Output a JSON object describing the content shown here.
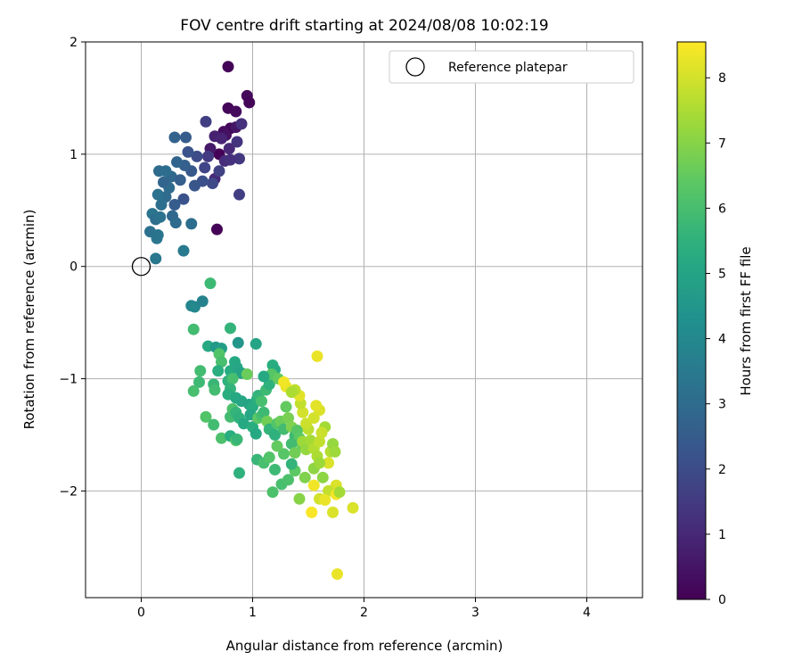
{
  "chart_data": {
    "type": "scatter",
    "title": "FOV centre drift starting at 2024/08/08 10:02:19",
    "xlabel": "Angular distance from reference (arcmin)",
    "ylabel": "Rotation from reference (arcmin)",
    "xlim": [
      -0.5,
      4.5
    ],
    "ylim": [
      -2.95,
      2.0
    ],
    "x_ticks": [
      0,
      1,
      2,
      3,
      4
    ],
    "y_ticks": [
      -2,
      -1,
      0,
      1,
      2
    ],
    "grid": true,
    "legend": {
      "placement": "top-right",
      "entries": [
        "Reference platepar"
      ]
    },
    "colorbar": {
      "label": "Hours from first FF file",
      "range": [
        0,
        8.55
      ],
      "ticks": [
        0,
        1,
        2,
        3,
        4,
        5,
        6,
        7,
        8
      ],
      "colormap": "viridis"
    },
    "reference_point": {
      "x": 0,
      "y": 0
    },
    "series": [
      {
        "marker": "filled-circle",
        "points": [
          [
            0.78,
            1.78,
            0.1
          ],
          [
            0.78,
            1.41,
            0.15
          ],
          [
            0.95,
            1.52,
            0.2
          ],
          [
            0.97,
            1.46,
            0.1
          ],
          [
            0.85,
            1.38,
            0.25
          ],
          [
            0.8,
            1.23,
            0.1
          ],
          [
            0.74,
            1.2,
            0.3
          ],
          [
            0.7,
            1.0,
            0.05
          ],
          [
            0.68,
            0.33,
            0.05
          ],
          [
            0.85,
            1.24,
            0.5
          ],
          [
            0.9,
            1.27,
            1.2
          ],
          [
            0.76,
            1.17,
            0.4
          ],
          [
            0.66,
            1.16,
            0.8
          ],
          [
            0.58,
            1.29,
            1.6
          ],
          [
            0.62,
            1.05,
            0.6
          ],
          [
            0.72,
            1.14,
            0.9
          ],
          [
            0.79,
            1.05,
            1.0
          ],
          [
            0.86,
            1.11,
            1.3
          ],
          [
            0.88,
            0.96,
            1.4
          ],
          [
            0.75,
            0.94,
            1.1
          ],
          [
            0.6,
            0.98,
            1.5
          ],
          [
            0.66,
            0.78,
            1.0
          ],
          [
            0.57,
            0.88,
            1.8
          ],
          [
            0.5,
            0.98,
            2.0
          ],
          [
            0.42,
            1.02,
            2.2
          ],
          [
            0.88,
            0.64,
            1.6
          ],
          [
            0.8,
            0.95,
            1.2
          ],
          [
            0.7,
            0.85,
            1.7
          ],
          [
            0.64,
            0.74,
            1.9
          ],
          [
            0.55,
            0.76,
            2.1
          ],
          [
            0.48,
            0.72,
            2.3
          ],
          [
            0.45,
            0.85,
            2.4
          ],
          [
            0.39,
            0.9,
            2.6
          ],
          [
            0.3,
            1.15,
            2.7
          ],
          [
            0.4,
            1.15,
            2.5
          ],
          [
            0.32,
            0.93,
            2.8
          ],
          [
            0.27,
            0.8,
            2.9
          ],
          [
            0.25,
            0.7,
            3.0
          ],
          [
            0.35,
            0.77,
            2.6
          ],
          [
            0.38,
            0.6,
            2.2
          ],
          [
            0.3,
            0.55,
            2.5
          ],
          [
            0.22,
            0.62,
            3.0
          ],
          [
            0.18,
            0.55,
            3.1
          ],
          [
            0.15,
            0.64,
            3.2
          ],
          [
            0.16,
            0.85,
            3.0
          ],
          [
            0.2,
            0.75,
            2.8
          ],
          [
            0.22,
            0.85,
            3.1
          ],
          [
            0.1,
            0.47,
            3.3
          ],
          [
            0.13,
            0.42,
            3.1
          ],
          [
            0.17,
            0.44,
            3.2
          ],
          [
            0.28,
            0.45,
            2.9
          ],
          [
            0.31,
            0.39,
            3.0
          ],
          [
            0.45,
            0.38,
            3.1
          ],
          [
            0.08,
            0.31,
            3.2
          ],
          [
            0.14,
            0.25,
            3.4
          ],
          [
            0.15,
            0.28,
            3.3
          ],
          [
            0.13,
            0.07,
            3.4
          ],
          [
            0.38,
            0.14,
            3.5
          ],
          [
            0.45,
            -0.35,
            3.9
          ],
          [
            0.48,
            -0.36,
            4.0
          ],
          [
            0.55,
            -0.31,
            3.8
          ],
          [
            0.62,
            -0.15,
            5.8
          ],
          [
            0.47,
            -0.56,
            5.9
          ],
          [
            0.8,
            -0.55,
            5.6
          ],
          [
            0.6,
            -0.71,
            5.2
          ],
          [
            0.67,
            -0.72,
            4.6
          ],
          [
            0.72,
            -0.73,
            4.8
          ],
          [
            0.87,
            -0.68,
            4.5
          ],
          [
            1.03,
            -0.69,
            5.0
          ],
          [
            0.7,
            -0.78,
            6.2
          ],
          [
            0.72,
            -0.85,
            6.0
          ],
          [
            0.53,
            -0.93,
            5.9
          ],
          [
            0.52,
            -1.03,
            5.8
          ],
          [
            0.47,
            -1.11,
            6.0
          ],
          [
            0.65,
            -1.05,
            5.7
          ],
          [
            0.66,
            -1.1,
            5.9
          ],
          [
            0.69,
            -0.93,
            5.4
          ],
          [
            0.8,
            -0.93,
            5.3
          ],
          [
            0.84,
            -0.85,
            5.2
          ],
          [
            0.86,
            -0.9,
            5.1
          ],
          [
            0.9,
            -0.95,
            5.0
          ],
          [
            0.95,
            -0.96,
            6.6
          ],
          [
            0.78,
            -1.02,
            5.5
          ],
          [
            0.82,
            -1.0,
            6.0
          ],
          [
            0.8,
            -1.09,
            5.6
          ],
          [
            0.78,
            -1.14,
            5.4
          ],
          [
            0.85,
            -1.17,
            5.2
          ],
          [
            0.9,
            -1.2,
            5.1
          ],
          [
            0.97,
            -1.23,
            5.0
          ],
          [
            1.0,
            -1.25,
            5.3
          ],
          [
            1.04,
            -1.18,
            5.4
          ],
          [
            1.05,
            -1.15,
            5.6
          ],
          [
            1.08,
            -1.2,
            6.0
          ],
          [
            1.12,
            -1.1,
            5.8
          ],
          [
            1.15,
            -1.05,
            5.5
          ],
          [
            1.18,
            -0.88,
            5.4
          ],
          [
            1.2,
            -0.92,
            5.3
          ],
          [
            1.17,
            -0.96,
            6.3
          ],
          [
            1.23,
            -1.0,
            6.5
          ],
          [
            1.1,
            -0.98,
            5.2
          ],
          [
            0.58,
            -1.34,
            6.2
          ],
          [
            0.65,
            -1.41,
            5.9
          ],
          [
            0.72,
            -1.53,
            6.1
          ],
          [
            0.8,
            -1.51,
            5.4
          ],
          [
            0.85,
            -1.55,
            6.3
          ],
          [
            0.86,
            -1.54,
            5.7
          ],
          [
            0.8,
            -1.34,
            5.9
          ],
          [
            0.82,
            -1.27,
            6.1
          ],
          [
            0.85,
            -1.3,
            5.6
          ],
          [
            0.88,
            -1.35,
            5.5
          ],
          [
            0.92,
            -1.4,
            5.2
          ],
          [
            0.98,
            -1.32,
            5.1
          ],
          [
            1.0,
            -1.43,
            5.4
          ],
          [
            1.03,
            -1.49,
            5.2
          ],
          [
            1.05,
            -1.35,
            6.4
          ],
          [
            1.08,
            -1.33,
            6.0
          ],
          [
            1.1,
            -1.3,
            5.8
          ],
          [
            1.13,
            -1.38,
            6.7
          ],
          [
            1.15,
            -1.45,
            5.6
          ],
          [
            1.2,
            -1.5,
            5.5
          ],
          [
            1.22,
            -1.4,
            6.2
          ],
          [
            1.25,
            -1.38,
            6.6
          ],
          [
            1.28,
            -1.45,
            5.9
          ],
          [
            1.3,
            -1.25,
            6.5
          ],
          [
            1.32,
            -1.35,
            6.8
          ],
          [
            1.35,
            -1.43,
            6.9
          ],
          [
            1.38,
            -1.51,
            5.8
          ],
          [
            1.4,
            -1.46,
            6.3
          ],
          [
            1.42,
            -1.53,
            6.4
          ],
          [
            1.45,
            -1.6,
            6.6
          ],
          [
            0.88,
            -1.84,
            5.5
          ],
          [
            1.04,
            -1.72,
            5.7
          ],
          [
            1.1,
            -1.75,
            6.0
          ],
          [
            1.15,
            -1.7,
            6.2
          ],
          [
            1.2,
            -1.81,
            5.8
          ],
          [
            1.18,
            -2.01,
            6.1
          ],
          [
            1.26,
            -1.94,
            6.0
          ],
          [
            1.32,
            -1.9,
            6.1
          ],
          [
            1.38,
            -1.82,
            6.4
          ],
          [
            1.35,
            -1.76,
            5.6
          ],
          [
            1.28,
            -1.67,
            6.3
          ],
          [
            1.22,
            -1.6,
            6.5
          ],
          [
            1.35,
            -1.58,
            5.9
          ],
          [
            1.38,
            -1.66,
            6.7
          ],
          [
            1.45,
            -1.56,
            7.3
          ],
          [
            1.48,
            -1.63,
            7.2
          ],
          [
            1.52,
            -1.55,
            7.4
          ],
          [
            1.55,
            -1.62,
            7.6
          ],
          [
            1.58,
            -1.69,
            7.5
          ],
          [
            1.6,
            -1.56,
            7.8
          ],
          [
            1.5,
            -1.45,
            7.7
          ],
          [
            1.48,
            -1.4,
            7.9
          ],
          [
            1.55,
            -1.35,
            8.0
          ],
          [
            1.6,
            -1.28,
            8.1
          ],
          [
            1.57,
            -1.24,
            8.2
          ],
          [
            1.45,
            -1.3,
            8.0
          ],
          [
            1.43,
            -1.22,
            7.8
          ],
          [
            1.42,
            -1.15,
            8.2
          ],
          [
            1.38,
            -1.1,
            7.7
          ],
          [
            1.3,
            -1.07,
            8.3
          ],
          [
            1.35,
            -1.12,
            7.5
          ],
          [
            1.28,
            -1.03,
            8.4
          ],
          [
            1.58,
            -0.8,
            8.3
          ],
          [
            1.65,
            -1.43,
            7.4
          ],
          [
            1.62,
            -1.48,
            7.9
          ],
          [
            1.7,
            -1.65,
            7.6
          ],
          [
            1.68,
            -1.75,
            8.1
          ],
          [
            1.72,
            -1.58,
            7.2
          ],
          [
            1.74,
            -1.65,
            7.3
          ],
          [
            1.75,
            -1.95,
            8.1
          ],
          [
            1.68,
            -2.0,
            7.8
          ],
          [
            1.6,
            -2.07,
            8.0
          ],
          [
            1.65,
            -2.08,
            8.3
          ],
          [
            1.55,
            -1.95,
            8.4
          ],
          [
            1.53,
            -2.19,
            8.5
          ],
          [
            1.42,
            -2.07,
            7.0
          ],
          [
            1.47,
            -1.88,
            6.9
          ],
          [
            1.55,
            -1.8,
            7.1
          ],
          [
            1.6,
            -1.75,
            7.3
          ],
          [
            1.72,
            -2.19,
            8.1
          ],
          [
            1.75,
            -2.03,
            8.4
          ],
          [
            1.78,
            -2.01,
            7.4
          ],
          [
            1.9,
            -2.15,
            8.1
          ],
          [
            1.76,
            -2.74,
            8.3
          ],
          [
            1.63,
            -1.88,
            7.1
          ]
        ]
      }
    ]
  }
}
